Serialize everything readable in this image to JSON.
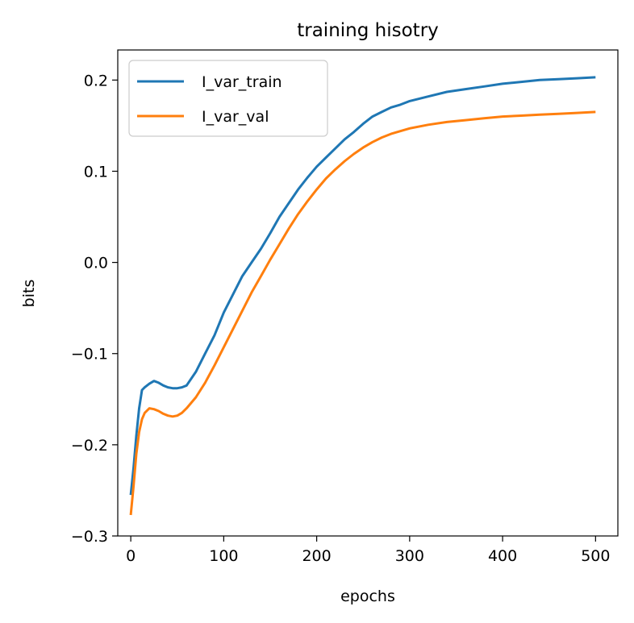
{
  "chart_data": {
    "type": "line",
    "title": "training hisotry",
    "xlabel": "epochs",
    "ylabel": "bits",
    "xlim": [
      -14,
      524
    ],
    "ylim": [
      -0.3,
      0.233
    ],
    "xticks": [
      0,
      100,
      200,
      300,
      400,
      500
    ],
    "xtick_labels": [
      "0",
      "100",
      "200",
      "300",
      "400",
      "500"
    ],
    "yticks": [
      -0.3,
      -0.2,
      -0.1,
      0.0,
      0.1,
      0.2
    ],
    "ytick_labels": [
      "−0.3",
      "−0.2",
      "−0.1",
      "0.0",
      "0.1",
      "0.2"
    ],
    "grid": false,
    "legend_position": "top-left",
    "series": [
      {
        "name": "I_var_train",
        "color": "#1f77b4",
        "x": [
          0,
          3,
          6,
          9,
          12,
          15,
          20,
          25,
          30,
          35,
          40,
          45,
          50,
          55,
          60,
          70,
          80,
          90,
          100,
          110,
          120,
          130,
          140,
          150,
          160,
          170,
          180,
          190,
          200,
          210,
          220,
          230,
          240,
          250,
          260,
          270,
          280,
          290,
          300,
          320,
          340,
          360,
          380,
          400,
          420,
          440,
          460,
          480,
          500
        ],
        "y": [
          -0.255,
          -0.225,
          -0.19,
          -0.16,
          -0.14,
          -0.137,
          -0.133,
          -0.13,
          -0.132,
          -0.135,
          -0.137,
          -0.138,
          -0.138,
          -0.137,
          -0.135,
          -0.12,
          -0.1,
          -0.08,
          -0.055,
          -0.035,
          -0.015,
          0.0,
          0.015,
          0.032,
          0.05,
          0.065,
          0.08,
          0.093,
          0.105,
          0.115,
          0.125,
          0.135,
          0.143,
          0.152,
          0.16,
          0.165,
          0.17,
          0.173,
          0.177,
          0.182,
          0.187,
          0.19,
          0.193,
          0.196,
          0.198,
          0.2,
          0.201,
          0.202,
          0.203
        ]
      },
      {
        "name": "I_var_val",
        "color": "#ff7f0e",
        "x": [
          0,
          3,
          6,
          9,
          12,
          15,
          20,
          25,
          30,
          35,
          40,
          45,
          50,
          55,
          60,
          70,
          80,
          90,
          100,
          110,
          120,
          130,
          140,
          150,
          160,
          170,
          180,
          190,
          200,
          210,
          220,
          230,
          240,
          250,
          260,
          270,
          280,
          290,
          300,
          320,
          340,
          360,
          380,
          400,
          420,
          440,
          460,
          480,
          500
        ],
        "y": [
          -0.277,
          -0.245,
          -0.21,
          -0.186,
          -0.172,
          -0.165,
          -0.16,
          -0.161,
          -0.163,
          -0.166,
          -0.168,
          -0.169,
          -0.168,
          -0.165,
          -0.16,
          -0.148,
          -0.132,
          -0.113,
          -0.093,
          -0.073,
          -0.053,
          -0.033,
          -0.015,
          0.003,
          0.02,
          0.037,
          0.053,
          0.067,
          0.08,
          0.092,
          0.102,
          0.111,
          0.119,
          0.126,
          0.132,
          0.137,
          0.141,
          0.144,
          0.147,
          0.151,
          0.154,
          0.156,
          0.158,
          0.16,
          0.161,
          0.162,
          0.163,
          0.164,
          0.165
        ]
      }
    ]
  }
}
